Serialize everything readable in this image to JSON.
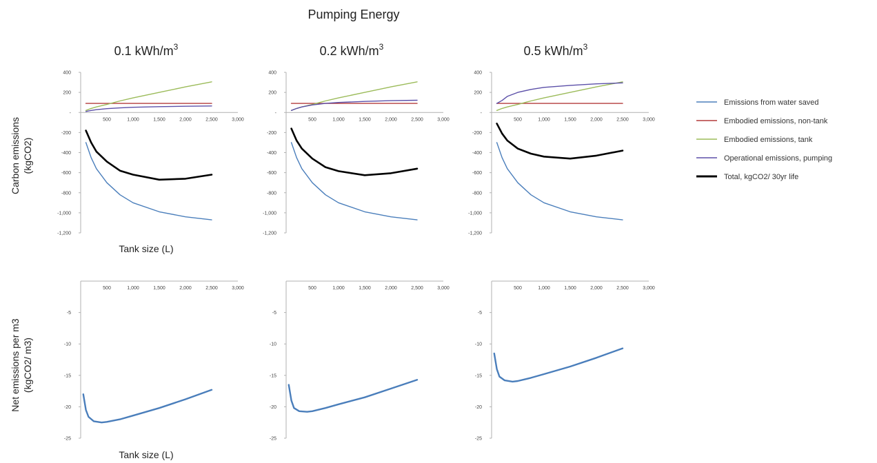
{
  "title": "Pumping Energy",
  "ylabel_top": [
    "Carbon emissions",
    "(kgCO2)"
  ],
  "ylabel_bottom": [
    "Net emissions per m3",
    "(kgCO2/ m3)"
  ],
  "xlabel": "Tank size (L)",
  "panel_titles": [
    {
      "main": "0.1 kWh/m",
      "sup": "3"
    },
    {
      "main": "0.2 kWh/m",
      "sup": "3"
    },
    {
      "main": "0.5 kWh/m",
      "sup": "3"
    }
  ],
  "legend": [
    {
      "label": "Emissions from water saved",
      "color": "#4a7ebb"
    },
    {
      "label": "Embodied emissions, non-tank",
      "color": "#b33a3a"
    },
    {
      "label": "Embodied emissions, tank",
      "color": "#9bbb59"
    },
    {
      "label": "Operational emissions, pumping",
      "color": "#5b4fa8"
    },
    {
      "label": "Total, kgCO2/ 30yr life",
      "color": "#000000"
    }
  ],
  "chart_data": [
    {
      "type": "line",
      "panel": "top",
      "pumping_energy": "0.1 kWh/m3",
      "xlabel": "Tank size (L)",
      "ylabel": "Carbon emissions (kgCO2)",
      "xlim": [
        0,
        3000
      ],
      "ylim": [
        -1200,
        400
      ],
      "xticks": [
        "500",
        "1,000",
        "1,500",
        "2,000",
        "2,500",
        "3,000"
      ],
      "yticks": [
        "400",
        "200",
        "-",
        "-200",
        "-400",
        "-600",
        "-800",
        "-1,000",
        "-1,200"
      ],
      "x": [
        100,
        200,
        300,
        500,
        750,
        1000,
        1500,
        2000,
        2500
      ],
      "series": [
        {
          "name": "Emissions from water saved",
          "values": [
            -300,
            -450,
            -560,
            -700,
            -820,
            -900,
            -990,
            -1040,
            -1070
          ]
        },
        {
          "name": "Embodied emissions, non-tank",
          "values": [
            90,
            90,
            90,
            90,
            90,
            90,
            90,
            90,
            90
          ]
        },
        {
          "name": "Embodied emissions, tank",
          "values": [
            20,
            40,
            55,
            80,
            115,
            145,
            200,
            255,
            305
          ]
        },
        {
          "name": "Operational emissions, pumping",
          "values": [
            10,
            20,
            28,
            38,
            46,
            52,
            58,
            62,
            65
          ]
        },
        {
          "name": "Total, kgCO2/ 30yr life",
          "values": [
            -180,
            -300,
            -390,
            -490,
            -580,
            -620,
            -670,
            -660,
            -620
          ]
        }
      ]
    },
    {
      "type": "line",
      "panel": "top",
      "pumping_energy": "0.2 kWh/m3",
      "xlabel": "",
      "ylabel": "",
      "xlim": [
        0,
        3000
      ],
      "ylim": [
        -1200,
        400
      ],
      "xticks": [
        "500",
        "1,000",
        "1,500",
        "2,000",
        "2,500",
        "3,000"
      ],
      "yticks": [
        "400",
        "200",
        "-",
        "-200",
        "-400",
        "-600",
        "-800",
        "-1,000",
        "-1,200"
      ],
      "x": [
        100,
        200,
        300,
        500,
        750,
        1000,
        1500,
        2000,
        2500
      ],
      "series": [
        {
          "name": "Emissions from water saved",
          "values": [
            -300,
            -450,
            -560,
            -700,
            -820,
            -900,
            -990,
            -1040,
            -1070
          ]
        },
        {
          "name": "Embodied emissions, non-tank",
          "values": [
            90,
            90,
            90,
            90,
            90,
            90,
            90,
            90,
            90
          ]
        },
        {
          "name": "Embodied emissions, tank",
          "values": [
            20,
            40,
            55,
            80,
            115,
            145,
            200,
            255,
            305
          ]
        },
        {
          "name": "Operational emissions, pumping",
          "values": [
            20,
            40,
            55,
            75,
            90,
            100,
            110,
            118,
            122
          ]
        },
        {
          "name": "Total, kgCO2/ 30yr life",
          "values": [
            -160,
            -280,
            -360,
            -460,
            -545,
            -585,
            -625,
            -605,
            -560
          ]
        }
      ]
    },
    {
      "type": "line",
      "panel": "top",
      "pumping_energy": "0.5 kWh/m3",
      "xlabel": "",
      "ylabel": "",
      "xlim": [
        0,
        3000
      ],
      "ylim": [
        -1200,
        400
      ],
      "xticks": [
        "500",
        "1,000",
        "1,500",
        "2,000",
        "2,500",
        "3,000"
      ],
      "yticks": [
        "400",
        "200",
        "-",
        "-200",
        "-400",
        "-600",
        "-800",
        "-1,000",
        "-1,200"
      ],
      "x": [
        100,
        200,
        300,
        500,
        750,
        1000,
        1500,
        2000,
        2500
      ],
      "series": [
        {
          "name": "Emissions from water saved",
          "values": [
            -300,
            -450,
            -560,
            -700,
            -820,
            -900,
            -990,
            -1040,
            -1070
          ]
        },
        {
          "name": "Embodied emissions, non-tank",
          "values": [
            90,
            90,
            90,
            90,
            90,
            90,
            90,
            90,
            90
          ]
        },
        {
          "name": "Embodied emissions, tank",
          "values": [
            20,
            40,
            55,
            80,
            115,
            145,
            200,
            255,
            305
          ]
        },
        {
          "name": "Operational emissions, pumping",
          "values": [
            90,
            120,
            160,
            200,
            230,
            250,
            270,
            285,
            295
          ]
        },
        {
          "name": "Total, kgCO2/ 30yr life",
          "values": [
            -110,
            -210,
            -280,
            -360,
            -410,
            -440,
            -460,
            -430,
            -380
          ]
        }
      ]
    },
    {
      "type": "line",
      "panel": "bottom",
      "pumping_energy": "0.1 kWh/m3",
      "xlabel": "Tank size (L)",
      "ylabel": "Net emissions per m3 (kgCO2/ m3)",
      "xlim": [
        0,
        3000
      ],
      "ylim": [
        -25,
        0
      ],
      "xticks": [
        "500",
        "1,000",
        "1,500",
        "2,000",
        "2,500",
        "3,000"
      ],
      "yticks": [
        "-5",
        "-10",
        "-15",
        "-20",
        "-25"
      ],
      "x": [
        50,
        100,
        150,
        250,
        400,
        500,
        750,
        1000,
        1500,
        2000,
        2500
      ],
      "series": [
        {
          "values": [
            -18,
            -20.5,
            -21.6,
            -22.3,
            -22.5,
            -22.4,
            -22.0,
            -21.4,
            -20.2,
            -18.8,
            -17.3
          ]
        }
      ]
    },
    {
      "type": "line",
      "panel": "bottom",
      "pumping_energy": "0.2 kWh/m3",
      "xlabel": "",
      "ylabel": "",
      "xlim": [
        0,
        3000
      ],
      "ylim": [
        -25,
        0
      ],
      "xticks": [
        "500",
        "1,000",
        "1,500",
        "2,000",
        "2,500",
        "3,000"
      ],
      "yticks": [
        "-5",
        "-10",
        "-15",
        "-20",
        "-25"
      ],
      "x": [
        50,
        100,
        150,
        250,
        400,
        500,
        750,
        1000,
        1500,
        2000,
        2500
      ],
      "series": [
        {
          "values": [
            -16.5,
            -19.0,
            -20.2,
            -20.7,
            -20.8,
            -20.7,
            -20.2,
            -19.6,
            -18.5,
            -17.1,
            -15.7
          ]
        }
      ]
    },
    {
      "type": "line",
      "panel": "bottom",
      "pumping_energy": "0.5 kWh/m3",
      "xlabel": "",
      "ylabel": "",
      "xlim": [
        0,
        3000
      ],
      "ylim": [
        -25,
        0
      ],
      "xticks": [
        "500",
        "1,000",
        "1,500",
        "2,000",
        "2,500",
        "3,000"
      ],
      "yticks": [
        "-5",
        "-10",
        "-15",
        "-20",
        "-25"
      ],
      "x": [
        50,
        100,
        150,
        250,
        400,
        500,
        750,
        1000,
        1500,
        2000,
        2500
      ],
      "series": [
        {
          "values": [
            -11.5,
            -14.0,
            -15.2,
            -15.8,
            -16.0,
            -15.9,
            -15.4,
            -14.8,
            -13.6,
            -12.2,
            -10.7
          ]
        }
      ]
    }
  ]
}
